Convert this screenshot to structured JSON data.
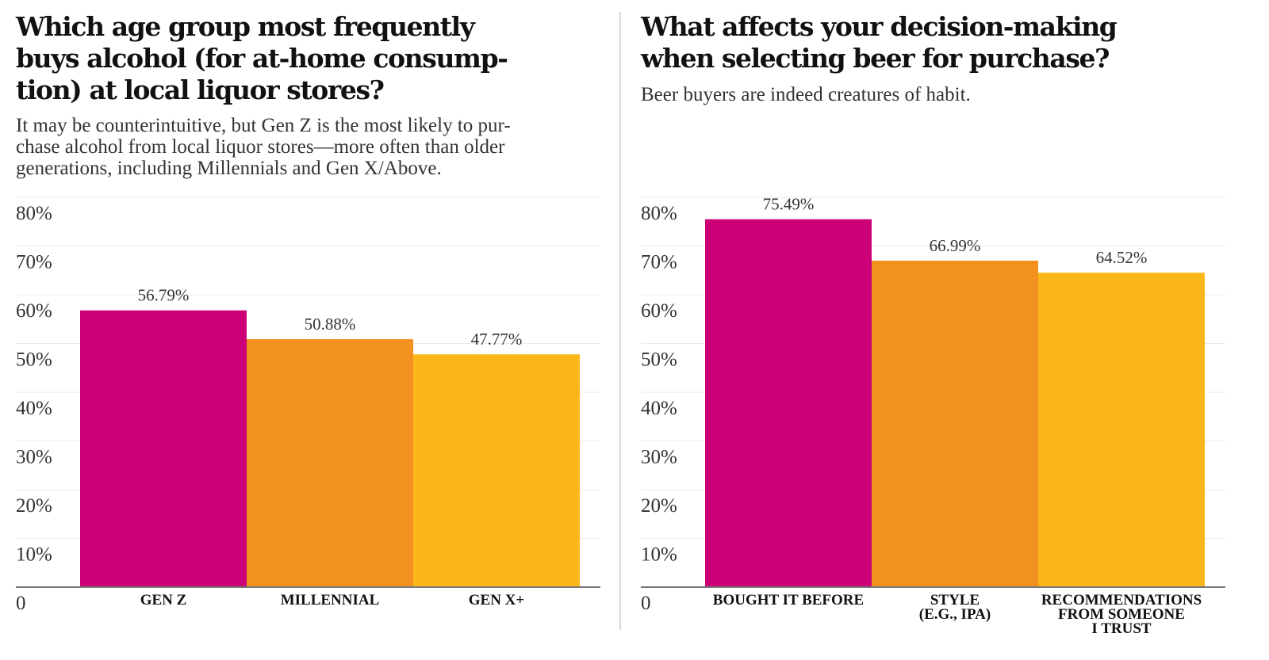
{
  "chart_data": [
    {
      "type": "bar",
      "title": "Which age group most frequently\nbuys alcohol (for at-home consump-\ntion) at local liquor stores?",
      "subtitle": "It may be counterintuitive, but Gen Z is the most likely to pur-\nchase alcohol from local liquor stores—more often than older\ngenerations, including Millennials and Gen X/Above.",
      "categories": [
        "GEN Z",
        "MILLENNIAL",
        "GEN X+"
      ],
      "values": [
        56.79,
        50.88,
        47.77
      ],
      "value_labels": [
        "56.79%",
        "50.88%",
        "47.77%"
      ],
      "colors": [
        "#cc0077",
        "#f39120",
        "#fbb71a"
      ],
      "ylim": [
        0,
        80
      ],
      "yticks": [
        0,
        {
          "value": 10,
          "label": "10%"
        },
        {
          "value": 20,
          "label": "20%"
        },
        {
          "value": 30,
          "label": "30%"
        },
        {
          "value": 40,
          "label": "40%"
        },
        {
          "value": 50,
          "label": "50%"
        },
        {
          "value": 60,
          "label": "60%"
        },
        {
          "value": 70,
          "label": "70%"
        },
        {
          "value": 80,
          "label": "80%"
        }
      ],
      "grid": true
    },
    {
      "type": "bar",
      "title": "What affects your decision-making\nwhen selecting beer for purchase?",
      "subtitle": "Beer buyers are indeed creatures of habit.",
      "categories": [
        "BOUGHT IT BEFORE",
        "STYLE\n(E.G., IPA)",
        "RECOMMENDATIONS\nFROM SOMEONE\nI TRUST"
      ],
      "values": [
        75.49,
        66.99,
        64.52
      ],
      "value_labels": [
        "75.49%",
        "66.99%",
        "64.52%"
      ],
      "colors": [
        "#cc0077",
        "#f39120",
        "#fbb71a"
      ],
      "ylim": [
        0,
        80
      ],
      "yticks": [
        0,
        {
          "value": 10,
          "label": "10%"
        },
        {
          "value": 20,
          "label": "20%"
        },
        {
          "value": 30,
          "label": "30%"
        },
        {
          "value": 40,
          "label": "40%"
        },
        {
          "value": 50,
          "label": "50%"
        },
        {
          "value": 60,
          "label": "60%"
        },
        {
          "value": 70,
          "label": "70%"
        },
        {
          "value": 80,
          "label": "80%"
        }
      ],
      "grid": true
    }
  ]
}
